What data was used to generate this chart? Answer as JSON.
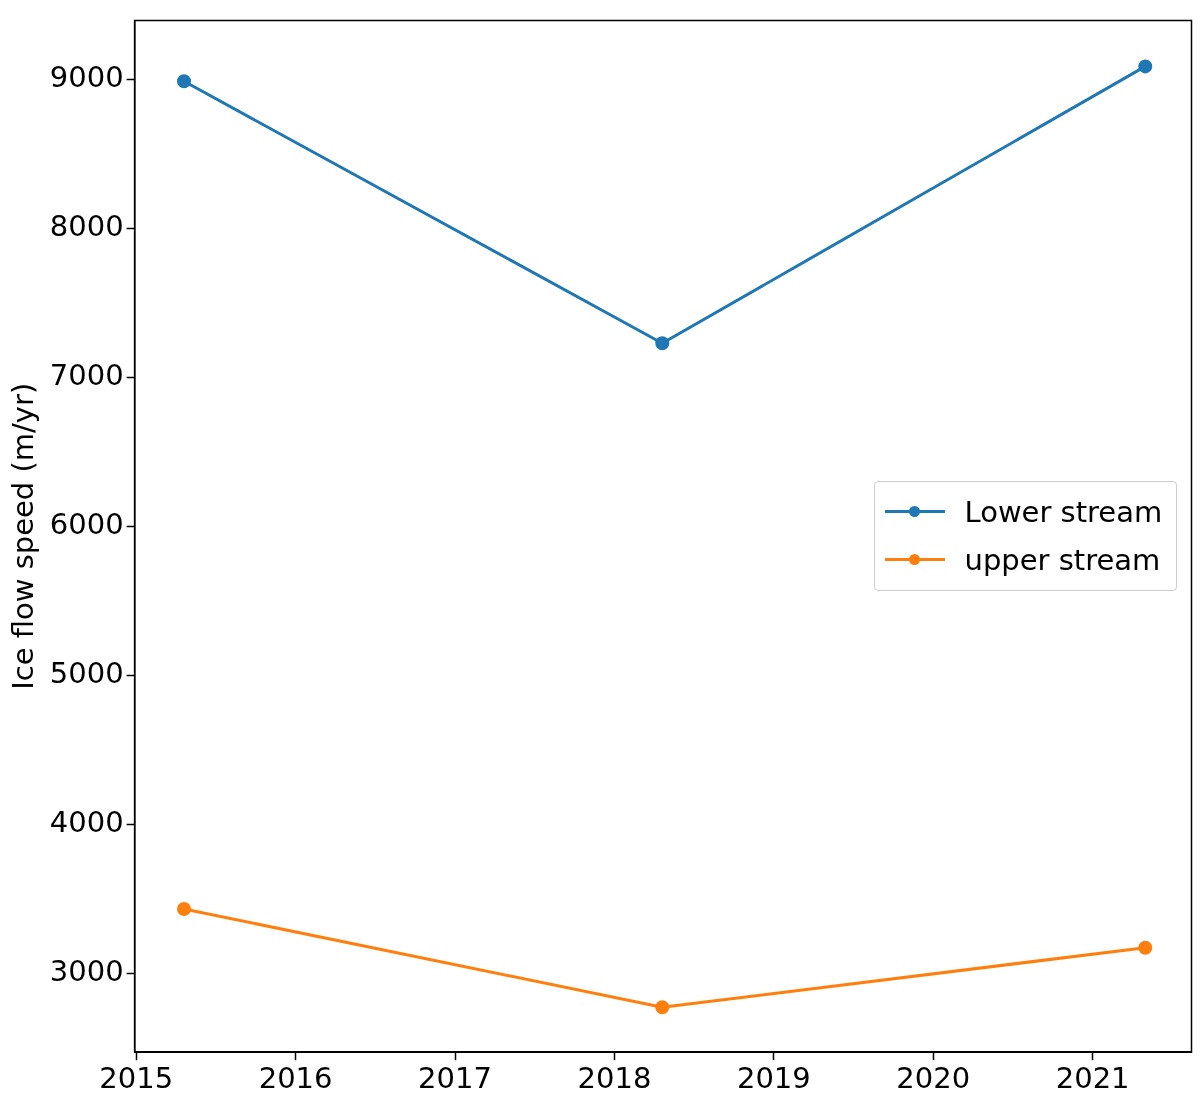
{
  "chart_data": {
    "type": "line",
    "ylabel": "Ice flow speed (m/yr)",
    "xlim": [
      2014.99,
      2021.62
    ],
    "xticks": [
      2015,
      2016,
      2017,
      2018,
      2019,
      2020,
      2021
    ],
    "ylim": [
      2468,
      9399
    ],
    "yticks": [
      3000,
      4000,
      5000,
      6000,
      7000,
      8000,
      9000
    ],
    "grid": false,
    "legend": "center right",
    "marker": "circle",
    "line_style": "solid",
    "series": [
      {
        "name": "Lower stream",
        "color": "#1f77b4",
        "x": [
          2015.3,
          2018.3,
          2021.33
        ],
        "values": [
          8990,
          7230,
          9090
        ]
      },
      {
        "name": "upper stream",
        "color": "#ff7f0e",
        "x": [
          2015.3,
          2018.3,
          2021.33
        ],
        "values": [
          3430,
          2770,
          3170
        ]
      }
    ]
  }
}
